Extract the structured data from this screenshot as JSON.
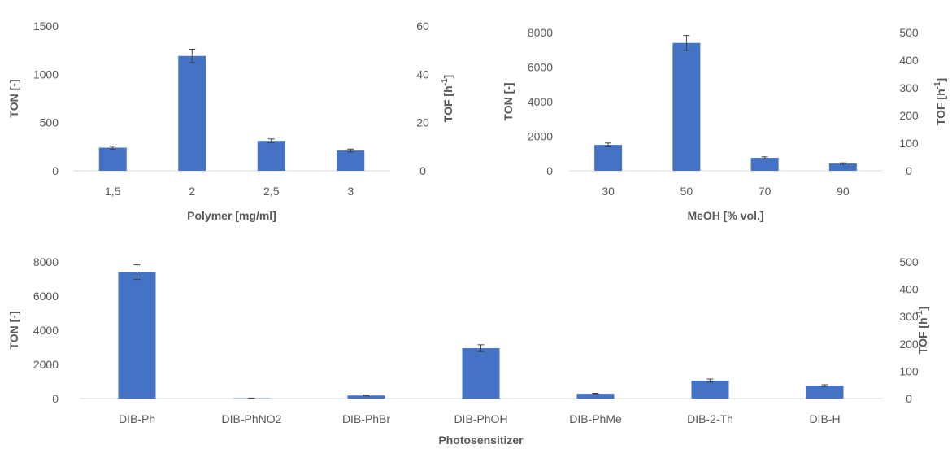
{
  "chart_data": [
    {
      "type": "bar",
      "xlabel": "Polymer [mg/ml]",
      "ylabel": "TON [-]",
      "ylabel_right": "TOF [h-1]",
      "ylabel_right_base": "TOF [h",
      "ylabel_right_sup": "-1",
      "ylabel_right_close": "]",
      "categories": [
        "1,5",
        "2",
        "2,5",
        "3"
      ],
      "values": [
        240,
        1190,
        310,
        210
      ],
      "errors": [
        15,
        70,
        20,
        15
      ],
      "ylim": [
        0,
        1500
      ],
      "yticks": [
        "0",
        "500",
        "1000",
        "1500"
      ],
      "y2lim": [
        0,
        60
      ],
      "y2ticks": [
        "0",
        "20",
        "40",
        "60"
      ],
      "grid": false,
      "bar_color": "#4472C4"
    },
    {
      "type": "bar",
      "xlabel": "MeOH [% vol.]",
      "ylabel": "TON [-]",
      "ylabel_right": "TOF [h-1]",
      "ylabel_right_base": "TOF [h",
      "ylabel_right_sup": "-1",
      "ylabel_right_close": "]",
      "categories": [
        "30",
        "50",
        "70",
        "90"
      ],
      "values": [
        1500,
        7400,
        750,
        420
      ],
      "errors": [
        110,
        430,
        60,
        40
      ],
      "ylim": [
        0,
        8000
      ],
      "yticks": [
        "0",
        "2000",
        "4000",
        "6000",
        "8000"
      ],
      "y2lim": [
        0,
        500
      ],
      "y2ticks": [
        "0",
        "100",
        "200",
        "300",
        "400",
        "500"
      ],
      "grid": false,
      "bar_color": "#4472C4"
    },
    {
      "type": "bar",
      "xlabel": "Photosensitizer",
      "ylabel": "TON [-]",
      "ylabel_right": "TOF [h-1]",
      "ylabel_right_base": "TOF [h",
      "ylabel_right_sup": "-1",
      "ylabel_right_close": "]",
      "categories": [
        "DIB-Ph",
        "DIB-PhNO2",
        "DIB-PhBr",
        "DIB-PhOH",
        "DIB-PhMe",
        "DIB-2-Th",
        "DIB-H"
      ],
      "values": [
        7400,
        20,
        180,
        2950,
        280,
        1050,
        760
      ],
      "errors": [
        430,
        10,
        25,
        200,
        30,
        90,
        50
      ],
      "ylim": [
        0,
        8000
      ],
      "yticks": [
        "0",
        "2000",
        "4000",
        "6000",
        "8000"
      ],
      "y2lim": [
        0,
        500
      ],
      "y2ticks": [
        "0",
        "100",
        "200",
        "300",
        "400",
        "500"
      ],
      "grid": false,
      "bar_color": "#4472C4"
    }
  ]
}
